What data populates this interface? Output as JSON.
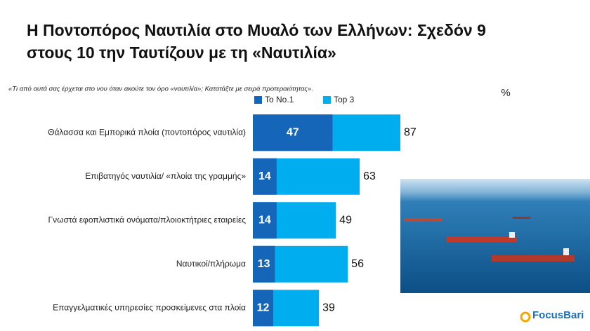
{
  "chart_data": {
    "type": "bar",
    "title": [
      "Η Ποντοπόρος Ναυτιλία στο Μυαλό των Ελλήνων: Σχεδόν 9",
      "στους 10 την Ταυτίζουν με τη «Ναυτιλία»"
    ],
    "subtitle": "«Τι από αυτά σας έρχεται στο νου όταν ακούτε τον όρο «ναυτιλία»; Κατατάξτε με σειρά προτεραιότητας».",
    "unit_label": "%",
    "categories": [
      "Θάλασσα και Εμπορικά πλοία (ποντοπόρος ναυτιλία)",
      "Επιβατηγός ναυτιλία/ «πλοία της γραμμής»",
      "Γνωστά εφοπλιστικά ονόματα/πλοιοκτήτριες εταιρείες",
      "Ναυτικοί/πλήρωμα",
      "Επαγγελματικές υπηρεσίες προσκείμενες στα πλοία"
    ],
    "series": [
      {
        "name": "Το No.1",
        "color": "#1565b8",
        "values": [
          47,
          14,
          14,
          13,
          12
        ]
      },
      {
        "name": "Top 3",
        "color": "#00aeef",
        "values": [
          87,
          63,
          49,
          56,
          39
        ]
      }
    ]
  },
  "logo": "FocusBari"
}
